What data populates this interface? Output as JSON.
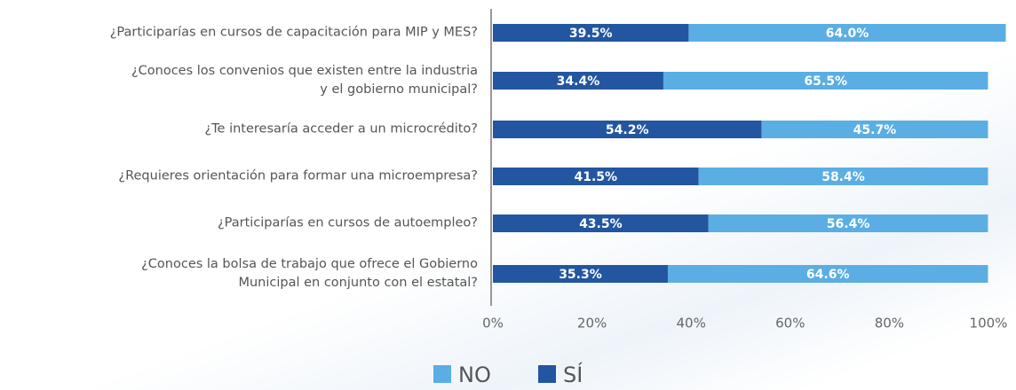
{
  "chart_data": {
    "type": "stacked_barh",
    "categories": [
      "¿Participarías en cursos de capacitación para MIP y MES?",
      "¿Conoces los convenios que existen entre la industria\ny el gobierno municipal?",
      "¿Te interesaría acceder a un microcrédito?",
      "¿Requieres orientación para formar una microempresa?",
      "¿Participarías en cursos de autoempleo?",
      "¿Conoces la bolsa de trabajo que ofrece el Gobierno\nMunicipal en conjunto con el estatal?"
    ],
    "series": [
      {
        "name": "SÍ",
        "color": "#2356a0",
        "values": [
          39.5,
          34.4,
          54.2,
          41.5,
          43.5,
          35.3
        ],
        "value_labels": [
          "39.5%",
          "34.4%",
          "54.2%",
          "41.5%",
          "43.5%",
          "35.3%"
        ]
      },
      {
        "name": "NO",
        "color": "#5aaee3",
        "values": [
          64.0,
          65.5,
          45.7,
          58.4,
          56.4,
          64.6
        ],
        "value_labels": [
          "64.0%",
          "65.5%",
          "45.7%",
          "58.4%",
          "56.4%",
          "64.6%"
        ]
      }
    ],
    "legend_order": [
      "NO",
      "SÍ"
    ],
    "xlim": [
      0,
      100
    ],
    "xticks": [
      {
        "value": 0,
        "label": "0%"
      },
      {
        "value": 20,
        "label": "20%"
      },
      {
        "value": 40,
        "label": "40%"
      },
      {
        "value": 60,
        "label": "60%"
      },
      {
        "value": 80,
        "label": "80%"
      },
      {
        "value": 100,
        "label": "100%"
      }
    ],
    "legend_position": "bottom"
  }
}
